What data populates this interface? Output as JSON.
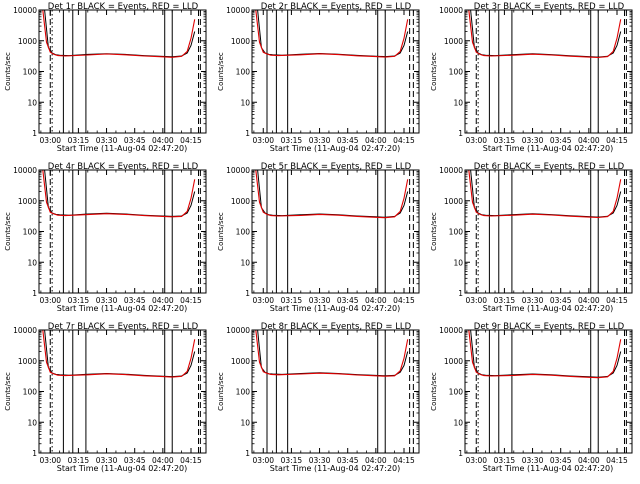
{
  "chart_data": {
    "type": "line",
    "shared": {
      "xlabel": "Start Time (11-Aug-04 02:47:20)",
      "ylabel": "Counts/sec",
      "yscale": "log",
      "ylim": [
        1,
        10000
      ],
      "yticks": [
        1,
        10,
        100,
        1000,
        10000
      ],
      "ytick_labels": [
        "1",
        "10",
        "100",
        "1000",
        "10000"
      ],
      "xlim": [
        "02:54:00",
        "04:23:00"
      ],
      "xticks": [
        "03:00",
        "03:15",
        "03:30",
        "03:45",
        "04:00",
        "04:15"
      ],
      "legend_labels": [
        "BLACK",
        "Events",
        "RED",
        "LLD"
      ],
      "colors": {
        "events": "#000000",
        "lld": "#e00000"
      }
    },
    "panels": [
      {
        "title": "Det 1r  BLACK = Events, RED = LLD",
        "series": [
          {
            "color": "black",
            "x": [
              "02:57",
              "02:59",
              "03:01",
              "03:03",
              "03:05",
              "03:10",
              "03:20",
              "03:30",
              "03:40",
              "03:50",
              "04:00",
              "04:05",
              "04:10",
              "04:13",
              "04:15",
              "04:17"
            ],
            "y": [
              10000,
              600,
              400,
              350,
              340,
              330,
              360,
              380,
              360,
              330,
              310,
              300,
              320,
              400,
              700,
              2000
            ]
          },
          {
            "color": "red",
            "x": [
              "02:56",
              "02:58",
              "03:00",
              "03:02",
              "03:04",
              "03:08",
              "03:20",
              "03:30",
              "03:40",
              "03:50",
              "04:00",
              "04:05",
              "04:10",
              "04:13",
              "04:15",
              "04:17"
            ],
            "y": [
              10000,
              900,
              420,
              360,
              330,
              320,
              345,
              370,
              350,
              320,
              300,
              290,
              310,
              450,
              1200,
              5000
            ]
          }
        ],
        "vlines": {
          "solid": [
            "03:07",
            "03:12",
            "03:19",
            "04:01",
            "04:05"
          ],
          "dashed": [
            "03:00",
            "04:19",
            "04:20"
          ],
          "dotted": [
            "03:01"
          ]
        }
      },
      {
        "title": "Det 2r  BLACK = Events, RED = LLD",
        "series": [
          {
            "color": "black",
            "x": [
              "02:57",
              "02:59",
              "03:01",
              "03:03",
              "03:05",
              "03:10",
              "03:20",
              "03:30",
              "03:40",
              "03:50",
              "04:00",
              "04:05",
              "04:10",
              "04:13",
              "04:15",
              "04:17"
            ],
            "y": [
              10000,
              600,
              400,
              360,
              350,
              340,
              365,
              385,
              365,
              335,
              315,
              305,
              320,
              400,
              700,
              2000
            ]
          },
          {
            "color": "red",
            "x": [
              "02:56",
              "02:58",
              "03:00",
              "03:02",
              "03:04",
              "03:08",
              "03:20",
              "03:30",
              "03:40",
              "03:50",
              "04:00",
              "04:05",
              "04:10",
              "04:13",
              "04:15",
              "04:17"
            ],
            "y": [
              10000,
              900,
              420,
              370,
              340,
              330,
              350,
              375,
              355,
              325,
              305,
              295,
              310,
              450,
              1200,
              5000
            ]
          }
        ],
        "vlines": {
          "solid": [
            "03:02",
            "03:07",
            "03:13",
            "04:01",
            "04:05"
          ],
          "dashed": [
            "04:18",
            "04:20"
          ],
          "dotted": []
        }
      },
      {
        "title": "Det 3r  BLACK = Events, RED = LLD",
        "series": [
          {
            "color": "black",
            "x": [
              "02:57",
              "02:59",
              "03:01",
              "03:03",
              "03:05",
              "03:10",
              "03:20",
              "03:30",
              "03:40",
              "03:50",
              "04:00",
              "04:05",
              "04:10",
              "04:13",
              "04:15",
              "04:17"
            ],
            "y": [
              10000,
              600,
              400,
              350,
              340,
              330,
              355,
              375,
              355,
              325,
              305,
              295,
              315,
              400,
              700,
              2000
            ]
          },
          {
            "color": "red",
            "x": [
              "02:56",
              "02:58",
              "03:00",
              "03:02",
              "03:04",
              "03:08",
              "03:20",
              "03:30",
              "03:40",
              "03:50",
              "04:00",
              "04:05",
              "04:10",
              "04:13",
              "04:15",
              "04:17"
            ],
            "y": [
              10000,
              900,
              420,
              360,
              330,
              320,
              340,
              365,
              345,
              315,
              295,
              285,
              305,
              450,
              1200,
              5000
            ]
          }
        ],
        "vlines": {
          "solid": [
            "03:07",
            "03:12",
            "03:19",
            "04:01",
            "04:05"
          ],
          "dashed": [
            "03:00",
            "04:19",
            "04:20"
          ],
          "dotted": [
            "03:01"
          ]
        }
      },
      {
        "title": "Det 4r  BLACK = Events, RED = LLD",
        "series": [
          {
            "color": "black",
            "x": [
              "02:57",
              "02:59",
              "03:01",
              "03:03",
              "03:05",
              "03:10",
              "03:20",
              "03:30",
              "03:40",
              "03:50",
              "04:00",
              "04:05",
              "04:10",
              "04:13",
              "04:15",
              "04:17"
            ],
            "y": [
              10000,
              600,
              400,
              360,
              350,
              340,
              370,
              390,
              370,
              340,
              320,
              310,
              320,
              400,
              700,
              2000
            ]
          },
          {
            "color": "red",
            "x": [
              "02:56",
              "02:58",
              "03:00",
              "03:02",
              "03:04",
              "03:08",
              "03:20",
              "03:30",
              "03:40",
              "03:50",
              "04:00",
              "04:05",
              "04:10",
              "04:13",
              "04:15",
              "04:17"
            ],
            "y": [
              10000,
              900,
              420,
              370,
              340,
              330,
              355,
              380,
              360,
              330,
              310,
              300,
              310,
              450,
              1200,
              5000
            ]
          }
        ],
        "vlines": {
          "solid": [
            "03:07",
            "03:12",
            "03:19",
            "04:01",
            "04:05"
          ],
          "dashed": [
            "03:00",
            "04:19",
            "04:20"
          ],
          "dotted": [
            "03:01"
          ]
        }
      },
      {
        "title": "Det 5r  BLACK = Events, RED = LLD",
        "series": [
          {
            "color": "black",
            "x": [
              "02:57",
              "02:59",
              "03:01",
              "03:03",
              "03:05",
              "03:10",
              "03:20",
              "03:30",
              "03:40",
              "03:50",
              "04:00",
              "04:05",
              "04:10",
              "04:13",
              "04:15",
              "04:17"
            ],
            "y": [
              10000,
              600,
              400,
              350,
              340,
              330,
              350,
              370,
              350,
              320,
              300,
              290,
              310,
              400,
              700,
              2000
            ]
          },
          {
            "color": "red",
            "x": [
              "02:56",
              "02:58",
              "03:00",
              "03:02",
              "03:04",
              "03:08",
              "03:20",
              "03:30",
              "03:40",
              "03:50",
              "04:00",
              "04:05",
              "04:10",
              "04:13",
              "04:15",
              "04:17"
            ],
            "y": [
              10000,
              900,
              420,
              360,
              330,
              320,
              335,
              360,
              340,
              310,
              290,
              280,
              300,
              450,
              1200,
              5000
            ]
          }
        ],
        "vlines": {
          "solid": [
            "03:02",
            "03:07",
            "03:13",
            "04:01",
            "04:05"
          ],
          "dashed": [
            "04:18",
            "04:20"
          ],
          "dotted": []
        }
      },
      {
        "title": "Det 6r  BLACK = Events, RED = LLD",
        "series": [
          {
            "color": "black",
            "x": [
              "02:57",
              "02:59",
              "03:01",
              "03:03",
              "03:05",
              "03:10",
              "03:20",
              "03:30",
              "03:40",
              "03:50",
              "04:00",
              "04:05",
              "04:10",
              "04:13",
              "04:15",
              "04:17"
            ],
            "y": [
              10000,
              600,
              400,
              350,
              340,
              330,
              355,
              375,
              355,
              325,
              305,
              295,
              315,
              400,
              700,
              2000
            ]
          },
          {
            "color": "red",
            "x": [
              "02:56",
              "02:58",
              "03:00",
              "03:02",
              "03:04",
              "03:08",
              "03:20",
              "03:30",
              "03:40",
              "03:50",
              "04:00",
              "04:05",
              "04:10",
              "04:13",
              "04:15",
              "04:17"
            ],
            "y": [
              10000,
              900,
              420,
              360,
              330,
              320,
              340,
              365,
              345,
              315,
              295,
              285,
              305,
              450,
              1200,
              5000
            ]
          }
        ],
        "vlines": {
          "solid": [
            "03:07",
            "03:12",
            "03:19",
            "04:01",
            "04:05"
          ],
          "dashed": [
            "03:00",
            "04:19",
            "04:20"
          ],
          "dotted": [
            "03:01"
          ]
        }
      },
      {
        "title": "Det 7r  BLACK = Events, RED = LLD",
        "series": [
          {
            "color": "black",
            "x": [
              "02:57",
              "02:59",
              "03:01",
              "03:03",
              "03:05",
              "03:10",
              "03:20",
              "03:30",
              "03:40",
              "03:50",
              "04:00",
              "04:05",
              "04:10",
              "04:13",
              "04:15",
              "04:17"
            ],
            "y": [
              10000,
              600,
              400,
              360,
              350,
              340,
              365,
              385,
              365,
              335,
              315,
              305,
              320,
              400,
              700,
              2000
            ]
          },
          {
            "color": "red",
            "x": [
              "02:56",
              "02:58",
              "03:00",
              "03:02",
              "03:04",
              "03:08",
              "03:20",
              "03:30",
              "03:40",
              "03:50",
              "04:00",
              "04:05",
              "04:10",
              "04:13",
              "04:15",
              "04:17"
            ],
            "y": [
              10000,
              900,
              420,
              370,
              340,
              330,
              350,
              375,
              355,
              325,
              305,
              295,
              310,
              450,
              1200,
              5000
            ]
          }
        ],
        "vlines": {
          "solid": [
            "03:07",
            "03:12",
            "03:19",
            "04:01",
            "04:05"
          ],
          "dashed": [
            "03:00",
            "04:19",
            "04:20"
          ],
          "dotted": [
            "03:01"
          ]
        }
      },
      {
        "title": "Det 8r  BLACK = Events, RED = LLD",
        "series": [
          {
            "color": "black",
            "x": [
              "02:57",
              "02:59",
              "03:01",
              "03:03",
              "03:05",
              "03:10",
              "03:20",
              "03:30",
              "03:40",
              "03:50",
              "04:00",
              "04:05",
              "04:10",
              "04:13",
              "04:15",
              "04:17"
            ],
            "y": [
              10000,
              600,
              420,
              380,
              370,
              360,
              385,
              405,
              385,
              355,
              335,
              325,
              335,
              420,
              700,
              2000
            ]
          },
          {
            "color": "red",
            "x": [
              "02:56",
              "02:58",
              "03:00",
              "03:02",
              "03:04",
              "03:08",
              "03:20",
              "03:30",
              "03:40",
              "03:50",
              "04:00",
              "04:05",
              "04:10",
              "04:13",
              "04:15",
              "04:17"
            ],
            "y": [
              10000,
              900,
              440,
              390,
              360,
              350,
              370,
              395,
              375,
              345,
              325,
              315,
              325,
              470,
              1200,
              5000
            ]
          }
        ],
        "vlines": {
          "solid": [
            "03:02",
            "03:07",
            "03:13",
            "04:01",
            "04:05"
          ],
          "dashed": [
            "04:18",
            "04:20"
          ],
          "dotted": []
        }
      },
      {
        "title": "Det 9r  BLACK = Events, RED = LLD",
        "series": [
          {
            "color": "black",
            "x": [
              "02:57",
              "02:59",
              "03:01",
              "03:03",
              "03:05",
              "03:10",
              "03:20",
              "03:30",
              "03:40",
              "03:50",
              "04:00",
              "04:05",
              "04:10",
              "04:13",
              "04:15",
              "04:17"
            ],
            "y": [
              10000,
              600,
              400,
              350,
              340,
              330,
              350,
              370,
              350,
              320,
              300,
              290,
              310,
              400,
              700,
              2000
            ]
          },
          {
            "color": "red",
            "x": [
              "02:56",
              "02:58",
              "03:00",
              "03:02",
              "03:04",
              "03:08",
              "03:20",
              "03:30",
              "03:40",
              "03:50",
              "04:00",
              "04:05",
              "04:10",
              "04:13",
              "04:15",
              "04:17"
            ],
            "y": [
              10000,
              900,
              420,
              360,
              330,
              320,
              335,
              360,
              340,
              310,
              290,
              280,
              300,
              450,
              1200,
              5000
            ]
          }
        ],
        "vlines": {
          "solid": [
            "03:07",
            "03:12",
            "03:19",
            "04:01",
            "04:05"
          ],
          "dashed": [
            "03:00",
            "04:19",
            "04:20"
          ],
          "dotted": [
            "03:01"
          ]
        }
      }
    ]
  }
}
